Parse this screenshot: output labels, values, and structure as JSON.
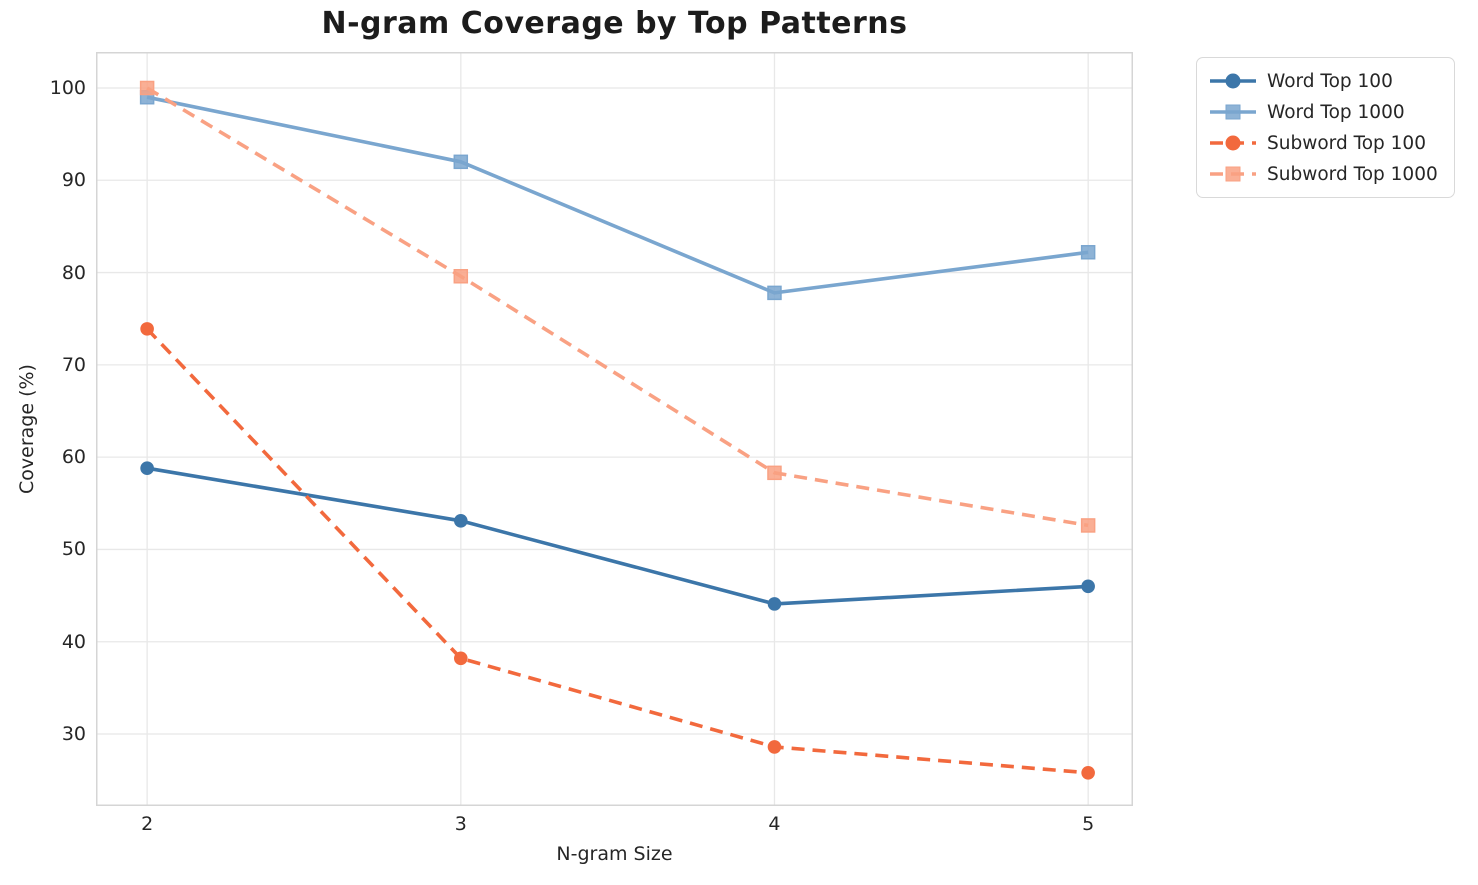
{
  "title": "N-gram Coverage by Top Patterns",
  "chart_data": {
    "type": "line",
    "title": "N-gram Coverage by Top Patterns",
    "xlabel": "N-gram Size",
    "ylabel": "Coverage (%)",
    "x": [
      2,
      3,
      4,
      5
    ],
    "xticks": [
      "2",
      "3",
      "4",
      "5"
    ],
    "yticks": [
      30,
      40,
      50,
      60,
      70,
      80,
      90,
      100
    ],
    "xlim": [
      1.837,
      5.143
    ],
    "ylim": [
      22.2,
      103.9
    ],
    "grid": true,
    "legend_position": "outside-right",
    "series": [
      {
        "name": "Word Top 100",
        "color": "#3c76a9",
        "dash": "solid",
        "marker": "circle",
        "values": [
          58.8,
          53.1,
          44.1,
          46.0
        ]
      },
      {
        "name": "Word Top 1000",
        "color": "#7aa6cf",
        "dash": "solid",
        "marker": "square",
        "values": [
          99.0,
          92.0,
          77.8,
          82.2
        ]
      },
      {
        "name": "Subword Top 100",
        "color": "#f2693d",
        "dash": "dashed",
        "marker": "circle",
        "values": [
          73.9,
          38.2,
          28.6,
          25.8
        ]
      },
      {
        "name": "Subword Top 1000",
        "color": "#f9a183",
        "dash": "dashed",
        "marker": "square",
        "values": [
          100.0,
          79.6,
          58.3,
          52.6
        ]
      }
    ]
  },
  "style": {
    "grid_color": "#e8e8e8",
    "spine_color": "#d5d5d5",
    "text_color": "#262626",
    "title_color": "#1c1c1c",
    "background": "#ffffff"
  }
}
